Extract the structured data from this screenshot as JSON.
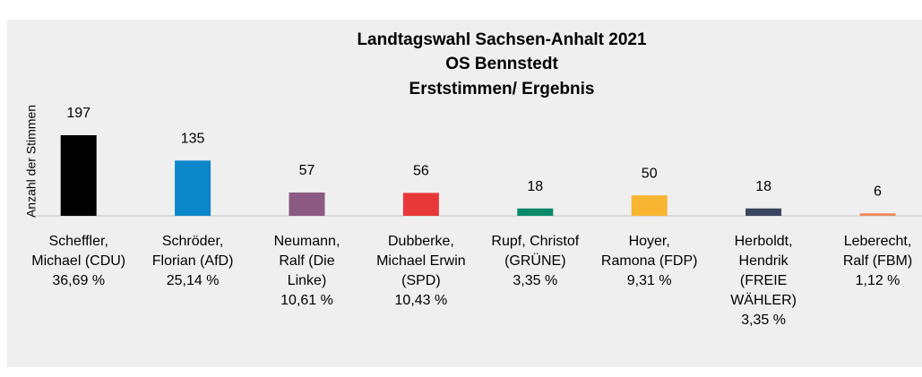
{
  "chart_data": {
    "type": "bar",
    "title": [
      "Landtagswahl Sachsen-Anhalt 2021",
      "OS Bennstedt",
      "Erststimmen/ Ergebnis"
    ],
    "y_label": "Anzahl der Stimmen",
    "categories": [
      [
        "Scheffler,",
        "Michael (CDU)",
        "36,69 %"
      ],
      [
        "Schröder,",
        "Florian (AfD)",
        "25,14 %"
      ],
      [
        "Neumann,",
        "Ralf (Die",
        "Linke)",
        "10,61 %"
      ],
      [
        "Dubberke,",
        "Michael Erwin",
        "(SPD)",
        "10,43 %"
      ],
      [
        "Rupf, Christof",
        "(GRÜNE)",
        "3,35 %"
      ],
      [
        "Hoyer,",
        "Ramona (FDP)",
        "9,31 %"
      ],
      [
        "Herboldt,",
        "Hendrik",
        "(FREIE",
        "WÄHLER)",
        "3,35 %"
      ],
      [
        "Leberecht,",
        "Ralf (FBM)",
        "1,12 %"
      ]
    ],
    "values": [
      197,
      135,
      57,
      56,
      18,
      50,
      18,
      6
    ],
    "colors": [
      "#000000",
      "#0b86c9",
      "#8a5a82",
      "#e8393a",
      "#0a8a6a",
      "#f8b531",
      "#3a4560",
      "#f08a5a"
    ]
  }
}
